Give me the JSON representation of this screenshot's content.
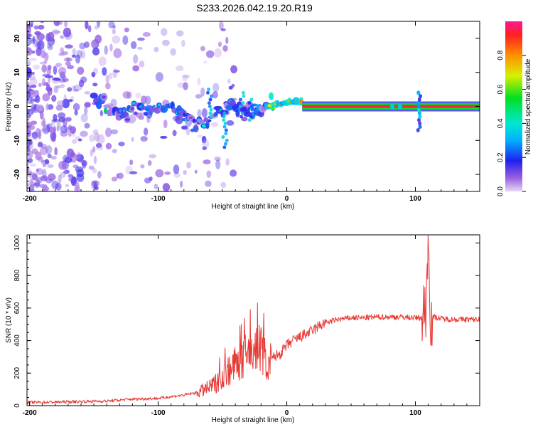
{
  "figure": {
    "title": "S233.2026.042.19.20.R19"
  },
  "colors": {
    "snr_line": "#e53a36",
    "axes": "#000000",
    "background": "#ffffff"
  },
  "chart_data": [
    {
      "type": "heatmap",
      "title": "S233.2026.042.19.20.R19",
      "xlabel": "Height of straight line (km)",
      "ylabel": "Frequency (Hz)",
      "xlim": [
        -202,
        150
      ],
      "ylim": [
        -25,
        25
      ],
      "xticks": [
        -200,
        -100,
        0,
        100
      ],
      "xtick_labels": [
        "-200",
        "-100",
        "0",
        "100"
      ],
      "yticks": [
        -20,
        -10,
        0,
        10,
        20
      ],
      "ytick_labels": [
        "-20",
        "-10",
        "0",
        "10",
        "20"
      ],
      "colorbar": {
        "label": "Normalized spectral amplitude",
        "range": [
          0,
          1
        ],
        "ticks": [
          0.0,
          0.2,
          0.4,
          0.6,
          0.8
        ],
        "tick_labels": [
          "0.0",
          "0.2",
          "0.4",
          "0.6",
          "0.8"
        ],
        "colormap": "rainbow (purple to red)"
      },
      "features": [
        {
          "name": "scattered noise",
          "x_range": [
            -202,
            -80
          ],
          "y_range": [
            -25,
            25
          ],
          "amplitude": 0.1
        },
        {
          "name": "frequency band",
          "x_range": [
            -150,
            12
          ],
          "center_hz": 0,
          "amplitude": 0.4
        },
        {
          "name": "residual line",
          "x_range": [
            12,
            150
          ],
          "center_hz": 0,
          "amplitude": 0.95
        },
        {
          "name": "spike",
          "x": 103,
          "y_range": [
            -7,
            4
          ],
          "amplitude": 0.5
        }
      ]
    },
    {
      "type": "line",
      "xlabel": "Height of straight line (km)",
      "ylabel": "SNR (10 * v/v)",
      "xlim": [
        -202,
        150
      ],
      "ylim": [
        0,
        1050
      ],
      "xticks": [
        -200,
        -100,
        0,
        100
      ],
      "xtick_labels": [
        "-200",
        "-100",
        "0",
        "100"
      ],
      "yticks": [
        0,
        200,
        400,
        600,
        800,
        1000
      ],
      "ytick_labels": [
        "0",
        "200",
        "400",
        "600",
        "800",
        "1000"
      ],
      "series": [
        {
          "color": "#e53a36",
          "x": [
            -202,
            -180,
            -160,
            -140,
            -120,
            -100,
            -90,
            -80,
            -70,
            -60,
            -55,
            -50,
            -45,
            -40,
            -35,
            -30,
            -25,
            -20,
            -15,
            -10,
            -5,
            0,
            5,
            10,
            15,
            20,
            25,
            30,
            40,
            50,
            60,
            70,
            80,
            90,
            100,
            105,
            108,
            110,
            112,
            115,
            120,
            130,
            140,
            150
          ],
          "y": [
            20,
            22,
            25,
            28,
            40,
            45,
            55,
            65,
            80,
            110,
            140,
            180,
            220,
            250,
            280,
            320,
            340,
            360,
            250,
            300,
            320,
            370,
            400,
            420,
            440,
            460,
            490,
            510,
            530,
            540,
            540,
            545,
            545,
            545,
            540,
            540,
            600,
            1000,
            540,
            545,
            535,
            530,
            530,
            530
          ]
        }
      ]
    }
  ]
}
